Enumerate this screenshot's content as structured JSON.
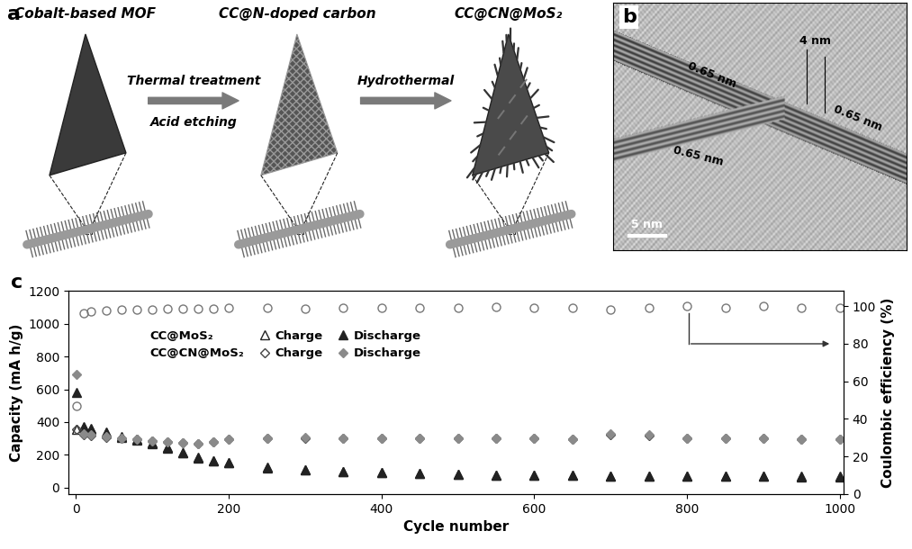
{
  "panel_a": {
    "label": "a",
    "stages": [
      "Cobalt-based MOF",
      "CC@N-doped carbon",
      "CC@CN@MoS₂"
    ],
    "steps": [
      [
        "Thermal treatment",
        "Acid etching"
      ],
      [
        "Hydrothermal"
      ]
    ]
  },
  "panel_b": {
    "label": "b",
    "spacing_labels": [
      "0.65 nm",
      "0.65 nm",
      "0.65 nm"
    ],
    "thickness_label": "4 nm",
    "scale_bar": "5 nm"
  },
  "chart_data": {
    "label": "c",
    "type": "scatter",
    "xlabel": "Cycle number",
    "ylabel": "Capacity (mA h/g)",
    "y2label": "Coulombic efficiency (%)",
    "x": [
      1,
      10,
      20,
      40,
      60,
      80,
      100,
      120,
      140,
      160,
      180,
      200,
      250,
      300,
      350,
      400,
      450,
      500,
      550,
      600,
      650,
      700,
      750,
      800,
      850,
      900,
      950,
      1000
    ],
    "xlim": [
      -10,
      1005
    ],
    "xticks": [
      0,
      200,
      400,
      600,
      800,
      1000
    ],
    "ylim": [
      -40,
      1200
    ],
    "yticks": [
      0,
      200,
      400,
      600,
      800,
      1000,
      1200
    ],
    "y2lim": [
      0,
      108
    ],
    "y2ticks": [
      0,
      20,
      40,
      60,
      80,
      100
    ],
    "legend": "upper left",
    "series": [
      {
        "name": "Charge",
        "group": "CC@MoS₂",
        "color": "#222222",
        "marker": "open_triangle",
        "values": [
          355,
          365,
          355,
          335,
          305,
          290,
          270,
          240,
          210,
          180,
          162,
          152,
          122,
          108,
          98,
          90,
          86,
          80,
          77,
          75,
          73,
          71,
          71,
          69,
          69,
          68,
          67,
          67
        ]
      },
      {
        "name": "Discharge",
        "group": "CC@MoS₂",
        "color": "#222222",
        "marker": "triangle",
        "values": [
          580,
          370,
          360,
          340,
          310,
          295,
          275,
          245,
          215,
          185,
          165,
          155,
          125,
          110,
          100,
          92,
          88,
          82,
          78,
          76,
          74,
          72,
          72,
          70,
          70,
          69,
          68,
          68
        ]
      },
      {
        "name": "Charge",
        "group": "CC@CN@MoS₂",
        "color": "#444444",
        "marker": "open_diamond",
        "values": [
          355,
          325,
          318,
          308,
          298,
          293,
          283,
          278,
          273,
          268,
          278,
          293,
          298,
          303,
          298,
          298,
          298,
          298,
          298,
          298,
          293,
          325,
          318,
          298,
          298,
          298,
          293,
          293
        ]
      },
      {
        "name": "Discharge",
        "group": "CC@CN@MoS₂",
        "color": "#8a8a8a",
        "marker": "diamond",
        "values": [
          690,
          330,
          320,
          310,
          300,
          295,
          285,
          280,
          275,
          270,
          280,
          295,
          300,
          305,
          300,
          300,
          300,
          300,
          300,
          300,
          295,
          330,
          320,
          300,
          300,
          300,
          295,
          295
        ]
      },
      {
        "axis": "y2",
        "color": "#777777",
        "marker": "open_circle",
        "values": [
          47,
          96,
          97,
          97.5,
          98,
          98,
          98,
          98.5,
          98.5,
          98.5,
          98.5,
          99,
          99,
          98.5,
          99,
          99,
          99,
          99,
          99.5,
          99,
          99,
          98,
          99,
          100,
          99,
          100,
          99,
          99
        ]
      }
    ]
  }
}
